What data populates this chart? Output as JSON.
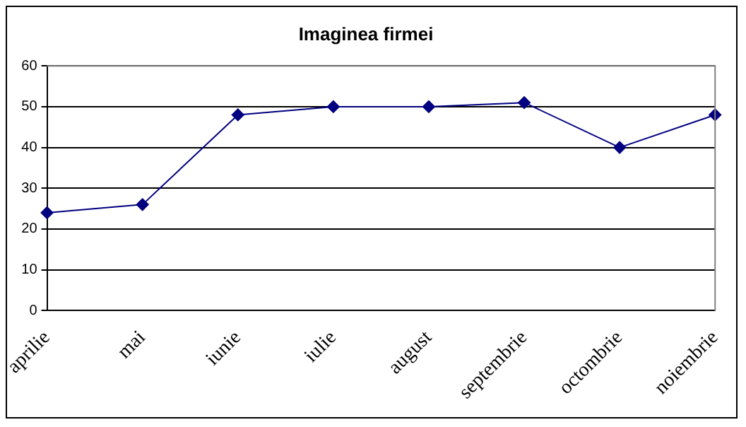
{
  "chart_data": {
    "type": "line",
    "title": "Imaginea firmei",
    "categories": [
      "aprilie",
      "mai",
      "iunie",
      "iulie",
      "august",
      "septembrie",
      "octombrie",
      "noiembrie"
    ],
    "series": [
      {
        "color": "#000080",
        "values": [
          24,
          26,
          48,
          50,
          50,
          51,
          40,
          48
        ]
      }
    ],
    "ylim": [
      0,
      60
    ],
    "yticks": [
      0,
      10,
      20,
      30,
      40,
      50,
      60
    ],
    "grid": "y",
    "legend": false,
    "marker": "diamond",
    "line_style": "solid"
  }
}
